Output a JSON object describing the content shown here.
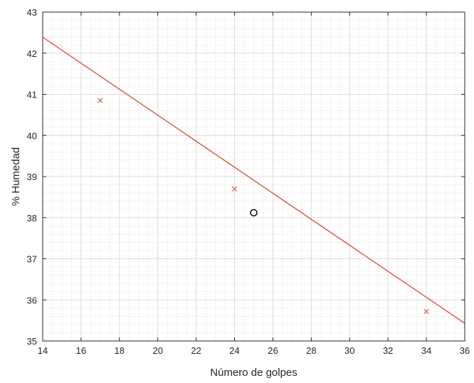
{
  "chart_data": {
    "type": "scatter",
    "title": "",
    "xlabel": "Número de golpes",
    "ylabel": "% Humedad",
    "xlim": [
      14,
      36
    ],
    "ylim": [
      35,
      43
    ],
    "x_ticks": [
      14,
      16,
      18,
      20,
      22,
      24,
      26,
      28,
      30,
      32,
      34,
      36
    ],
    "y_ticks": [
      35,
      36,
      37,
      38,
      39,
      40,
      41,
      42,
      43
    ],
    "x_scale": "linear",
    "grid": true,
    "minor_grid": true,
    "legend": "none",
    "series": [
      {
        "type": "scatter",
        "marker": "x",
        "color": "#e8433a",
        "points": [
          {
            "x": 17,
            "y": 40.85
          },
          {
            "x": 24,
            "y": 38.7
          },
          {
            "x": 34,
            "y": 35.72
          }
        ]
      },
      {
        "type": "line",
        "color": "#d9463b",
        "points": [
          {
            "x": 14,
            "y": 42.39
          },
          {
            "x": 36,
            "y": 35.43
          }
        ]
      },
      {
        "type": "scatter",
        "marker": "o",
        "color": "#000000",
        "points": [
          {
            "x": 25,
            "y": 38.12
          }
        ]
      }
    ]
  }
}
